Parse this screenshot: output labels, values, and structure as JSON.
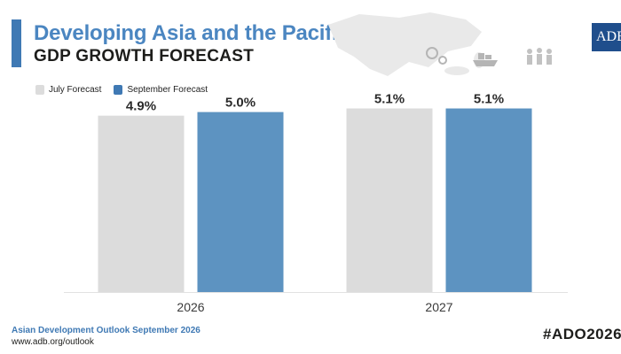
{
  "header": {
    "title": "Developing Asia and the Pacific",
    "subtitle": "GDP GROWTH FORECAST",
    "logo_text": "ADB",
    "icons": [
      "asia-map-icon",
      "gears-icon",
      "cargo-ship-icon",
      "people-icon"
    ]
  },
  "legend": [
    {
      "label": "July Forecast",
      "color": "#dcdcdc"
    },
    {
      "label": "September Forecast",
      "color": "#5d93c1"
    }
  ],
  "colors": {
    "accent": "#3f79b4",
    "title": "#4b86c1",
    "logo_bg": "#1f4e8c"
  },
  "chart_data": {
    "type": "bar",
    "title": "GDP GROWTH FORECAST",
    "categories": [
      "2026",
      "2027"
    ],
    "series": [
      {
        "name": "July Forecast",
        "values": [
          4.9,
          5.1
        ],
        "labels": [
          "4.9%",
          "5.1%"
        ],
        "color": "#dcdcdc"
      },
      {
        "name": "September Forecast",
        "values": [
          5.0,
          5.1
        ],
        "labels": [
          "5.0%",
          "5.1%"
        ],
        "color": "#5d93c1"
      }
    ],
    "xlabel": "",
    "ylabel": "",
    "ylim": [
      0,
      5.9
    ],
    "grid": false,
    "legend_position": "top-left"
  },
  "footer": {
    "source": "Asian Development Outlook September 2026",
    "url": "www.adb.org/outlook",
    "hashtag": "#ADO2026"
  }
}
